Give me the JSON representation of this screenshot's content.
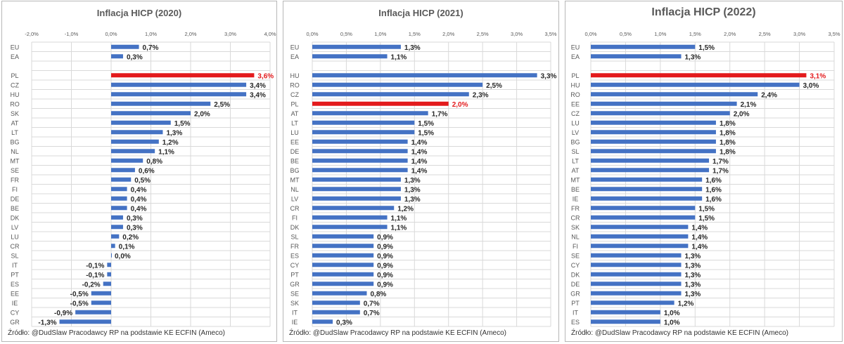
{
  "colors": {
    "bar": "#4472c4",
    "highlight": "#e31a1c",
    "grid": "#d9d9d9",
    "tick": "#595959",
    "label": "#262626"
  },
  "chart_data": [
    {
      "type": "bar",
      "orientation": "horizontal",
      "title": "Inflacja HICP (2020)",
      "source": "Źródło: @DudSlaw Pracodawcy RP na podstawie KE ECFIN (Ameco)",
      "xlim": [
        -2.0,
        4.0
      ],
      "xticks": [
        "-2,0%",
        "-1,0%",
        "0,0%",
        "1,0%",
        "2,0%",
        "3,0%",
        "4,0%"
      ],
      "grid": true,
      "highlight": "PL",
      "categories": [
        "EU",
        "EA",
        "",
        "PL",
        "CZ",
        "HU",
        "RO",
        "SK",
        "AT",
        "LT",
        "BG",
        "NL",
        "MT",
        "SE",
        "FR",
        "FI",
        "DE",
        "BE",
        "DK",
        "LV",
        "LU",
        "CR",
        "SL",
        "IT",
        "PT",
        "ES",
        "EE",
        "IE",
        "CY",
        "GR"
      ],
      "values": [
        0.7,
        0.3,
        null,
        3.6,
        3.4,
        3.4,
        2.5,
        2.0,
        1.5,
        1.3,
        1.2,
        1.1,
        0.8,
        0.6,
        0.5,
        0.4,
        0.4,
        0.4,
        0.3,
        0.3,
        0.2,
        0.1,
        0.0,
        -0.1,
        -0.1,
        -0.2,
        -0.5,
        -0.5,
        -0.9,
        -1.3
      ],
      "value_labels": [
        "0,7%",
        "0,3%",
        "",
        "3,6%",
        "3,4%",
        "3,4%",
        "2,5%",
        "2,0%",
        "1,5%",
        "1,3%",
        "1,2%",
        "1,1%",
        "0,8%",
        "0,6%",
        "0,5%",
        "0,4%",
        "0,4%",
        "0,4%",
        "0,3%",
        "0,3%",
        "0,2%",
        "0,1%",
        "0,0%",
        "-0,1%",
        "-0,1%",
        "-0,2%",
        "-0,5%",
        "-0,5%",
        "-0,9%",
        "-1,3%"
      ]
    },
    {
      "type": "bar",
      "orientation": "horizontal",
      "title": "Inflacja HICP (2021)",
      "source": "Źródło: @DudSlaw Pracodawcy RP na podstawie KE ECFIN (Ameco)",
      "xlim": [
        0.0,
        3.5
      ],
      "xticks": [
        "0,0%",
        "0,5%",
        "1,0%",
        "1,5%",
        "2,0%",
        "2,5%",
        "3,0%",
        "3,5%"
      ],
      "grid": true,
      "highlight": "PL",
      "categories": [
        "EU",
        "EA",
        "",
        "HU",
        "RO",
        "CZ",
        "PL",
        "AT",
        "LT",
        "LU",
        "EE",
        "DE",
        "BE",
        "BG",
        "MT",
        "NL",
        "LV",
        "CR",
        "FI",
        "DK",
        "SL",
        "FR",
        "ES",
        "CY",
        "PT",
        "GR",
        "SE",
        "SK",
        "IT",
        "IE"
      ],
      "values": [
        1.3,
        1.1,
        null,
        3.3,
        2.5,
        2.3,
        2.0,
        1.7,
        1.5,
        1.5,
        1.4,
        1.4,
        1.4,
        1.4,
        1.3,
        1.3,
        1.3,
        1.2,
        1.1,
        1.1,
        0.9,
        0.9,
        0.9,
        0.9,
        0.9,
        0.9,
        0.8,
        0.7,
        0.7,
        0.3
      ],
      "value_labels": [
        "1,3%",
        "1,1%",
        "",
        "3,3%",
        "2,5%",
        "2,3%",
        "2,0%",
        "1,7%",
        "1,5%",
        "1,5%",
        "1,4%",
        "1,4%",
        "1,4%",
        "1,4%",
        "1,3%",
        "1,3%",
        "1,3%",
        "1,2%",
        "1,1%",
        "1,1%",
        "0,9%",
        "0,9%",
        "0,9%",
        "0,9%",
        "0,9%",
        "0,9%",
        "0,8%",
        "0,7%",
        "0,7%",
        "0,3%"
      ]
    },
    {
      "type": "bar",
      "orientation": "horizontal",
      "title": "Inflacja HICP (2022)",
      "source": "Źródło: @DudSlaw Pracodawcy RP na podstawie KE ECFIN (Ameco)",
      "xlim": [
        0.0,
        3.5
      ],
      "xticks": [
        "0,0%",
        "0,5%",
        "1,0%",
        "1,5%",
        "2,0%",
        "2,5%",
        "3,0%",
        "3,5%"
      ],
      "grid": true,
      "highlight": "PL",
      "categories": [
        "EU",
        "EA",
        "",
        "PL",
        "HU",
        "RO",
        "EE",
        "CZ",
        "LU",
        "LV",
        "BG",
        "SL",
        "LT",
        "AT",
        "MT",
        "BE",
        "IE",
        "FR",
        "CR",
        "SK",
        "NL",
        "FI",
        "SE",
        "CY",
        "DK",
        "DE",
        "GR",
        "PT",
        "IT",
        "ES"
      ],
      "values": [
        1.5,
        1.3,
        null,
        3.1,
        3.0,
        2.4,
        2.1,
        2.0,
        1.8,
        1.8,
        1.8,
        1.8,
        1.7,
        1.7,
        1.6,
        1.6,
        1.6,
        1.5,
        1.5,
        1.4,
        1.4,
        1.4,
        1.3,
        1.3,
        1.3,
        1.3,
        1.3,
        1.2,
        1.0,
        1.0
      ],
      "value_labels": [
        "1,5%",
        "1,3%",
        "",
        "3,1%",
        "3,0%",
        "2,4%",
        "2,1%",
        "2,0%",
        "1,8%",
        "1,8%",
        "1,8%",
        "1,8%",
        "1,7%",
        "1,7%",
        "1,6%",
        "1,6%",
        "1,6%",
        "1,5%",
        "1,5%",
        "1,4%",
        "1,4%",
        "1,4%",
        "1,3%",
        "1,3%",
        "1,3%",
        "1,3%",
        "1,3%",
        "1,2%",
        "1,0%",
        "1,0%"
      ]
    }
  ]
}
